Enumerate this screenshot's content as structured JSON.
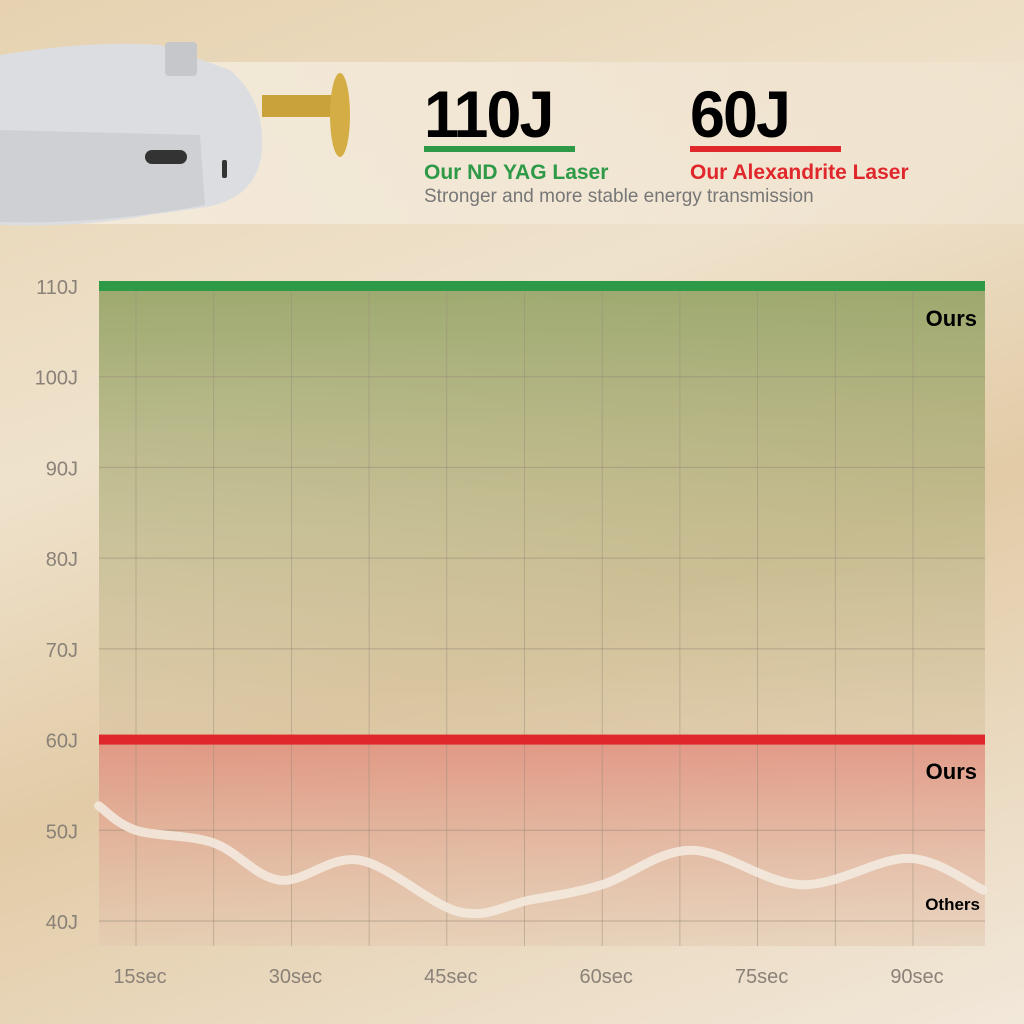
{
  "header": {
    "nd_value": "110J",
    "nd_label": "Our ND YAG Laser",
    "alex_value": "60J",
    "alex_label": "Our Alexandrite Laser",
    "subtitle": "Stronger and more stable energy transmission",
    "colors": {
      "green": "#2e9a48",
      "red": "#e0272b"
    }
  },
  "chart_data": {
    "type": "line",
    "xlabel": "",
    "ylabel": "",
    "x_ticks": [
      {
        "value": 15,
        "label": "15sec"
      },
      {
        "value": 30,
        "label": "30sec"
      },
      {
        "value": 45,
        "label": "45sec"
      },
      {
        "value": 60,
        "label": "60sec"
      },
      {
        "value": 75,
        "label": "75sec"
      },
      {
        "value": 90,
        "label": "90sec"
      }
    ],
    "y_ticks": [
      {
        "value": 40,
        "label": "40J"
      },
      {
        "value": 50,
        "label": "50J"
      },
      {
        "value": 60,
        "label": "60J"
      },
      {
        "value": 70,
        "label": "70J"
      },
      {
        "value": 80,
        "label": "80J"
      },
      {
        "value": 90,
        "label": "90J"
      },
      {
        "value": 100,
        "label": "100J"
      },
      {
        "value": 110,
        "label": "110J"
      }
    ],
    "xlim": [
      11.4,
      97
    ],
    "ylim": [
      37.3,
      110
    ],
    "grid": true,
    "series": [
      {
        "name": "Ours",
        "color": "#2e9a48",
        "constant": 110
      },
      {
        "name": "Ours",
        "color": "#e0272b",
        "constant": 60
      },
      {
        "name": "Others",
        "color": "#f3e9de",
        "points": [
          [
            11.4,
            52.7
          ],
          [
            15,
            50
          ],
          [
            22.5,
            48.6
          ],
          [
            28.9,
            44.5
          ],
          [
            36.6,
            46.7
          ],
          [
            46.2,
            41
          ],
          [
            53,
            42.3
          ],
          [
            60,
            44
          ],
          [
            68.6,
            47.8
          ],
          [
            79.2,
            44
          ],
          [
            89.6,
            46.9
          ],
          [
            96.8,
            43.4
          ]
        ]
      }
    ]
  }
}
